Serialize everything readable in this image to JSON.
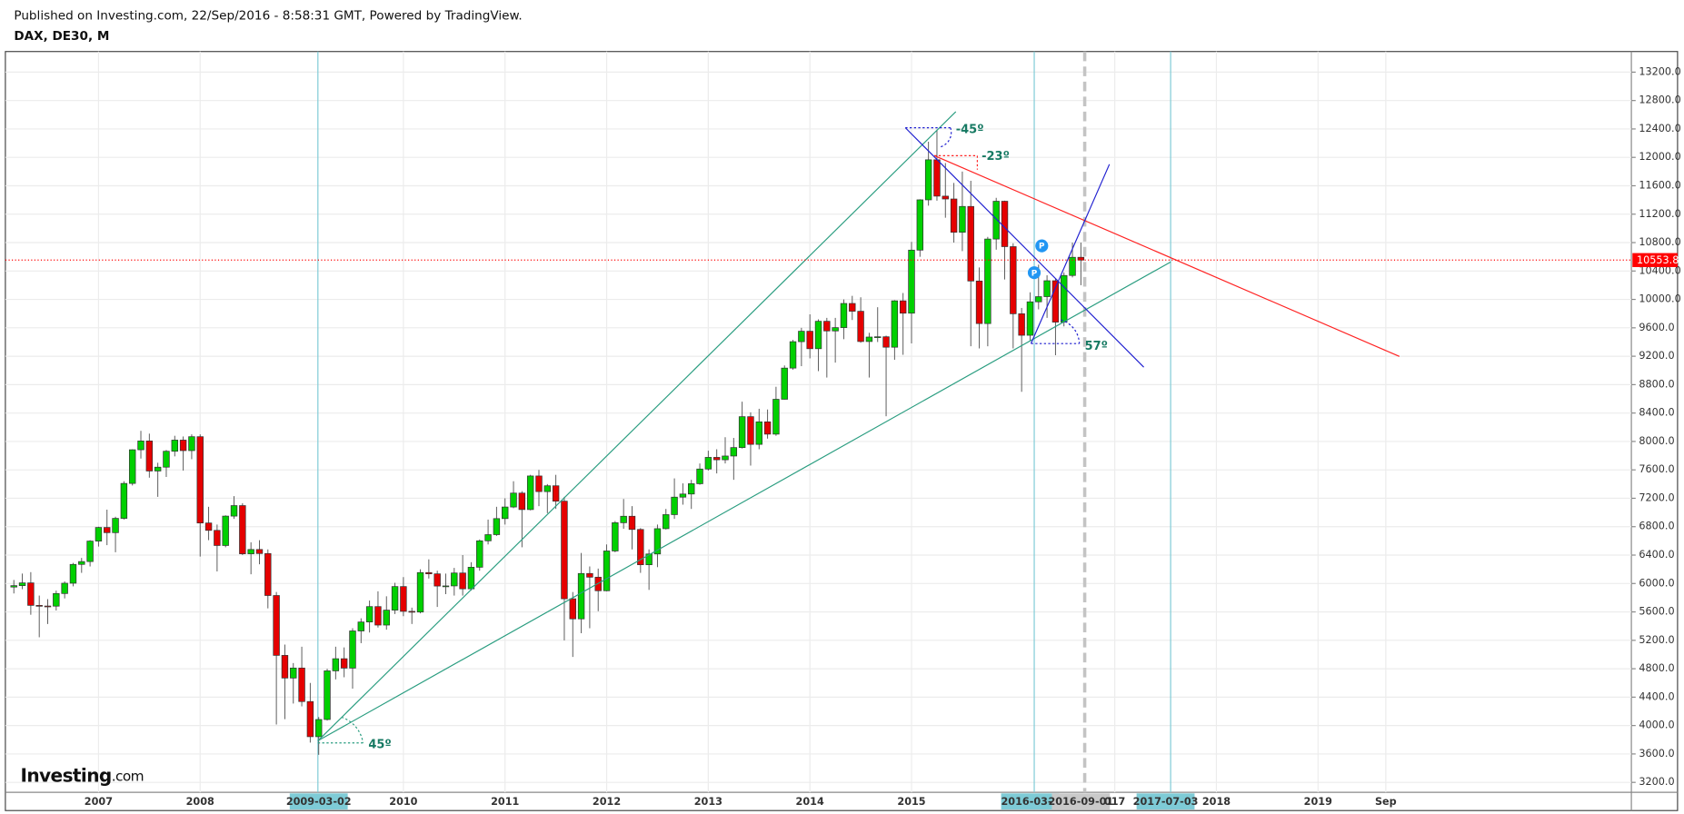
{
  "header": {
    "published": "Published on Investing.com, 22/Sep/2016 - 8:58:31 GMT, Powered by TradingView.",
    "symbol": "DAX, DE30, M",
    "logo_main": "Investing",
    "logo_suffix": ".com"
  },
  "chart_data": {
    "type": "candlestick",
    "x": [
      "2006-03",
      "2006-04",
      "2006-05",
      "2006-06",
      "2006-07",
      "2006-08",
      "2006-09",
      "2006-10",
      "2006-11",
      "2006-12",
      "2007-01",
      "2007-02",
      "2007-03",
      "2007-04",
      "2007-05",
      "2007-06",
      "2007-07",
      "2007-08",
      "2007-09",
      "2007-10",
      "2007-11",
      "2007-12",
      "2008-01",
      "2008-02",
      "2008-03",
      "2008-04",
      "2008-05",
      "2008-06",
      "2008-07",
      "2008-08",
      "2008-09",
      "2008-10",
      "2008-11",
      "2008-12",
      "2009-01",
      "2009-02",
      "2009-03",
      "2009-04",
      "2009-05",
      "2009-06",
      "2009-07",
      "2009-08",
      "2009-09",
      "2009-10",
      "2009-11",
      "2009-12",
      "2010-01",
      "2010-02",
      "2010-03",
      "2010-04",
      "2010-05",
      "2010-06",
      "2010-07",
      "2010-08",
      "2010-09",
      "2010-10",
      "2010-11",
      "2010-12",
      "2011-01",
      "2011-02",
      "2011-03",
      "2011-04",
      "2011-05",
      "2011-06",
      "2011-07",
      "2011-08",
      "2011-09",
      "2011-10",
      "2011-11",
      "2011-12",
      "2012-01",
      "2012-02",
      "2012-03",
      "2012-04",
      "2012-05",
      "2012-06",
      "2012-07",
      "2012-08",
      "2012-09",
      "2012-10",
      "2012-11",
      "2012-12",
      "2013-01",
      "2013-02",
      "2013-03",
      "2013-04",
      "2013-05",
      "2013-06",
      "2013-07",
      "2013-08",
      "2013-09",
      "2013-10",
      "2013-11",
      "2013-12",
      "2014-01",
      "2014-02",
      "2014-03",
      "2014-04",
      "2014-05",
      "2014-06",
      "2014-07",
      "2014-08",
      "2014-09",
      "2014-10",
      "2014-11",
      "2014-12",
      "2015-01",
      "2015-02",
      "2015-03",
      "2015-04",
      "2015-05",
      "2015-06",
      "2015-07",
      "2015-08",
      "2015-09",
      "2015-10",
      "2015-11",
      "2015-12",
      "2016-01",
      "2016-02",
      "2016-03",
      "2016-04",
      "2016-05",
      "2016-06",
      "2016-07",
      "2016-08",
      "2016-09"
    ],
    "open": [
      5950,
      5970,
      6009,
      5692,
      5683,
      5681,
      5859,
      6004,
      6269,
      6309,
      6597,
      6789,
      6716,
      6917,
      7409,
      7883,
      8007,
      7584,
      7638,
      7862,
      8019,
      7871,
      8067,
      6852,
      6748,
      6535,
      6949,
      7097,
      6418,
      6479,
      6422,
      5831,
      4988,
      4669,
      4810,
      4338,
      3843,
      4085,
      4770,
      4941,
      4809,
      5332,
      5458,
      5675,
      5415,
      5625,
      5957,
      5608,
      5598,
      6154,
      6136,
      5964,
      5966,
      6148,
      5925,
      6229,
      6601,
      6688,
      6914,
      7077,
      7273,
      7041,
      7514,
      7294,
      7376,
      7159,
      5785,
      5502,
      6141,
      6089,
      5898,
      6458,
      6856,
      6947,
      6761,
      6264,
      6416,
      6772,
      6970,
      7216,
      7260,
      7405,
      7612,
      7776,
      7742,
      7795,
      7914,
      8349,
      7959,
      8276,
      8103,
      8594,
      9033,
      9405,
      9552,
      9306,
      9692,
      9556,
      9603,
      9943,
      9833,
      9407,
      9470,
      9474,
      9327,
      9980,
      9806,
      10694,
      11402,
      11966,
      11454,
      11414,
      10945,
      11309,
      10259,
      9660,
      10850,
      11382,
      10743,
      9798,
      9495,
      9966,
      10039,
      10263,
      9680,
      10337,
      10593
    ],
    "high": [
      6050,
      6140,
      6160,
      5830,
      5780,
      5900,
      6030,
      6290,
      6360,
      6610,
      6800,
      7040,
      6940,
      7440,
      7890,
      8150,
      8110,
      7700,
      7880,
      8080,
      8070,
      8100,
      8100,
      7080,
      6830,
      6960,
      7230,
      7130,
      6580,
      6610,
      6480,
      5880,
      5140,
      4880,
      5110,
      4600,
      4120,
      4800,
      5110,
      5100,
      5370,
      5510,
      5760,
      5890,
      5820,
      6010,
      6090,
      5660,
      6200,
      6340,
      6180,
      6140,
      6220,
      6400,
      6300,
      6620,
      6900,
      7080,
      7200,
      7440,
      7300,
      7530,
      7600,
      7400,
      7530,
      7220,
      5880,
      6430,
      6240,
      6210,
      6550,
      6880,
      7190,
      7090,
      6780,
      6480,
      6830,
      7050,
      7480,
      7410,
      7460,
      7690,
      7870,
      7890,
      8060,
      8050,
      8560,
      8410,
      8460,
      8450,
      8770,
      9070,
      9430,
      9600,
      9790,
      9720,
      9740,
      9740,
      10000,
      10050,
      10030,
      9530,
      9890,
      9490,
      9990,
      10090,
      10810,
      11410,
      12220,
      12390,
      11920,
      11640,
      11800,
      11670,
      10450,
      10880,
      11430,
      11390,
      10790,
      9880,
      10100,
      10490,
      10340,
      10300,
      10380,
      10800,
      10800
    ],
    "low": [
      5860,
      5920,
      5560,
      5243,
      5430,
      5620,
      5790,
      5960,
      6150,
      6240,
      6520,
      6540,
      6440,
      6900,
      7380,
      7760,
      7490,
      7220,
      7500,
      7790,
      7590,
      7750,
      6380,
      6610,
      6170,
      6510,
      6910,
      6400,
      6130,
      6270,
      5650,
      4014,
      4090,
      4310,
      4270,
      3760,
      3588,
      4070,
      4650,
      4680,
      4520,
      5160,
      5310,
      5380,
      5350,
      5570,
      5540,
      5430,
      5580,
      6070,
      5670,
      5850,
      5830,
      5830,
      5900,
      6180,
      6550,
      6670,
      6830,
      7060,
      6510,
      7030,
      7090,
      6990,
      7050,
      5200,
      4966,
      5300,
      5370,
      5610,
      5890,
      6440,
      6770,
      6480,
      6150,
      5910,
      6230,
      6760,
      6910,
      7110,
      7050,
      7390,
      7590,
      7550,
      7690,
      7460,
      7900,
      7660,
      7890,
      8040,
      8080,
      8590,
      9010,
      9060,
      9170,
      8990,
      8900,
      9110,
      9440,
      9710,
      9390,
      8900,
      9400,
      8355,
      9150,
      9220,
      9380,
      10600,
      11320,
      11390,
      11150,
      10800,
      10680,
      9340,
      9310,
      9340,
      10700,
      10280,
      9310,
      8699,
      9420,
      9860,
      9740,
      9214,
      9620,
      10310,
      10200
    ],
    "close": [
      5970,
      6009,
      5692,
      5683,
      5681,
      5859,
      6004,
      6269,
      6309,
      6597,
      6789,
      6716,
      6917,
      7409,
      7883,
      8007,
      7584,
      7638,
      7862,
      8019,
      7871,
      8067,
      6852,
      6748,
      6535,
      6949,
      7097,
      6418,
      6479,
      6422,
      5831,
      4988,
      4669,
      4810,
      4338,
      3843,
      4085,
      4770,
      4941,
      4809,
      5332,
      5458,
      5675,
      5415,
      5625,
      5957,
      5608,
      5598,
      6154,
      6136,
      5964,
      5966,
      6148,
      5925,
      6229,
      6601,
      6688,
      6914,
      7077,
      7273,
      7041,
      7514,
      7294,
      7376,
      7159,
      5785,
      5502,
      6141,
      6089,
      5898,
      6458,
      6856,
      6947,
      6761,
      6264,
      6416,
      6772,
      6970,
      7216,
      7260,
      7405,
      7612,
      7776,
      7742,
      7795,
      7914,
      8349,
      7959,
      8276,
      8103,
      8594,
      9033,
      9405,
      9552,
      9306,
      9692,
      9556,
      9603,
      9943,
      9833,
      9407,
      9470,
      9474,
      9327,
      9980,
      9806,
      10694,
      11402,
      11966,
      11454,
      11414,
      10945,
      11309,
      10259,
      9660,
      10850,
      11382,
      10743,
      9798,
      9495,
      9966,
      10039,
      10263,
      9680,
      10337,
      10593,
      10554
    ],
    "up_color": "#00d000",
    "down_color": "#e50000",
    "last_price": 10553.8,
    "last_price_color": "#ff0000",
    "ylim": [
      3060,
      13490
    ],
    "yticks": [
      {
        "value": 3200,
        "label": "3200.0"
      },
      {
        "value": 3600,
        "label": "3600.0"
      },
      {
        "value": 4000,
        "label": "4000.0"
      },
      {
        "value": 4400,
        "label": "4400.0"
      },
      {
        "value": 4800,
        "label": "4800.0"
      },
      {
        "value": 5200,
        "label": "5200.0"
      },
      {
        "value": 5600,
        "label": "5600.0"
      },
      {
        "value": 6000,
        "label": "6000.0"
      },
      {
        "value": 6400,
        "label": "6400.0"
      },
      {
        "value": 6800,
        "label": "6800.0"
      },
      {
        "value": 7200,
        "label": "7200.0"
      },
      {
        "value": 7600,
        "label": "7600.0"
      },
      {
        "value": 8000,
        "label": "8000.0"
      },
      {
        "value": 8400,
        "label": "8400.0"
      },
      {
        "value": 8800,
        "label": "8800.0"
      },
      {
        "value": 9200,
        "label": "9200.0"
      },
      {
        "value": 9600,
        "label": "9600.0"
      },
      {
        "value": 10000,
        "label": "10000.0"
      },
      {
        "value": 10400,
        "label": "10400.0"
      },
      {
        "value": 10800,
        "label": "10800.0"
      },
      {
        "value": 11200,
        "label": "11200.0"
      },
      {
        "value": 11600,
        "label": "11600.0"
      },
      {
        "value": 12000,
        "label": "12000.0"
      },
      {
        "value": 12400,
        "label": "12400.0"
      },
      {
        "value": 12800,
        "label": "12800.0"
      },
      {
        "value": 13200,
        "label": "13200.0"
      }
    ],
    "xlim": [
      "2006-02",
      "2022-02"
    ],
    "xticks": [
      {
        "value": "2007-01",
        "label": "2007"
      },
      {
        "value": "2008-01",
        "label": "2008"
      },
      {
        "value": "2009-03",
        "label": "2009-03-02",
        "highlight": "#7ecbd6"
      },
      {
        "value": "2010-01",
        "label": "2010"
      },
      {
        "value": "2011-01",
        "label": "2011"
      },
      {
        "value": "2012-01",
        "label": "2012"
      },
      {
        "value": "2013-01",
        "label": "2013"
      },
      {
        "value": "2014-01",
        "label": "2014"
      },
      {
        "value": "2015-01",
        "label": "2015"
      },
      {
        "value": "2016-03",
        "label": "2016-03-0",
        "highlight": "#7ecbd6"
      },
      {
        "value": "2016-09",
        "label": "2016-09-01",
        "highlight": "#c9c9c9"
      },
      {
        "value": "2017-01",
        "label": "017"
      },
      {
        "value": "2017-07",
        "label": "2017-07-03",
        "highlight": "#7ecbd6"
      },
      {
        "value": "2018-01",
        "label": "2018"
      },
      {
        "value": "2019-01",
        "label": "2019"
      },
      {
        "value": "2019-09",
        "label": "Sep"
      }
    ],
    "grid": true,
    "annotations": [
      "-45º",
      "-23º",
      "57º",
      "45º",
      "P",
      "P"
    ]
  }
}
